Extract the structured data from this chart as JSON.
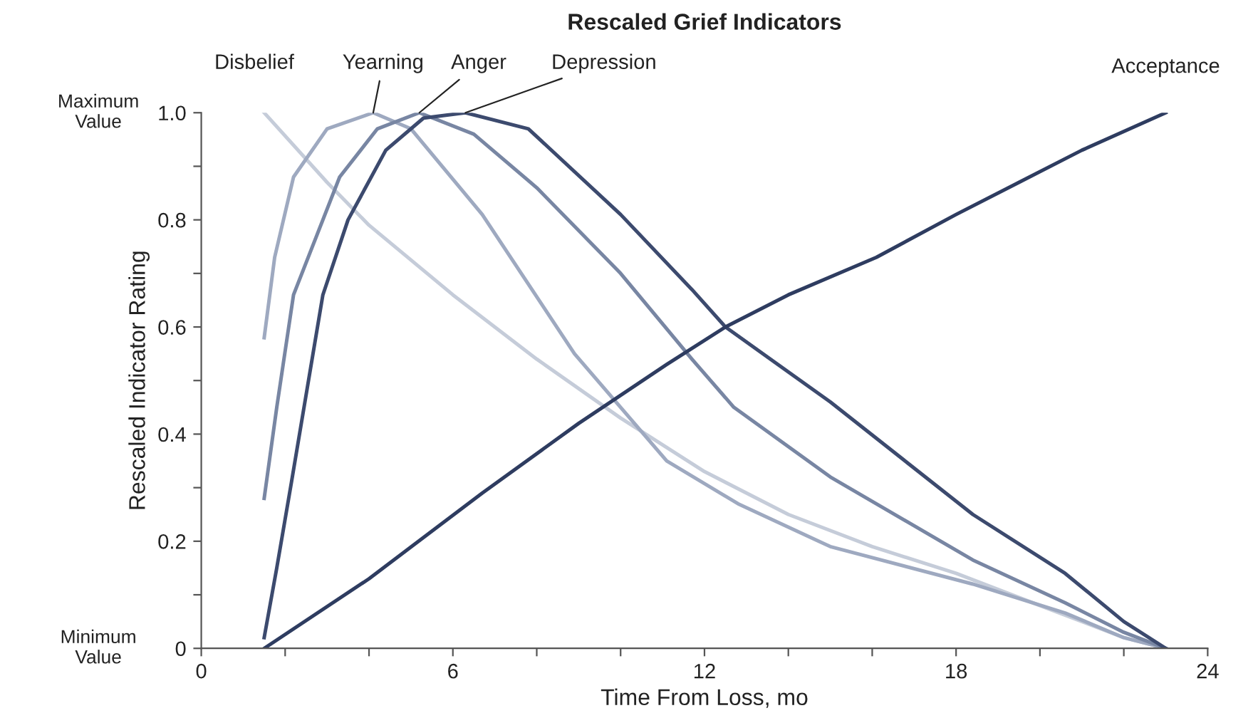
{
  "chart_data": {
    "type": "line",
    "title": "Rescaled Grief Indicators",
    "xlabel": "Time From Loss, mo",
    "ylabel": "Rescaled Indicator Rating",
    "series": [
      {
        "name": "Disbelief",
        "color": "#c5ccd9",
        "x": [
          1.5,
          3,
          4,
          6,
          8,
          10,
          12,
          14,
          16,
          18,
          20,
          22,
          23
        ],
        "values": [
          1.0,
          0.87,
          0.79,
          0.66,
          0.54,
          0.43,
          0.33,
          0.25,
          0.19,
          0.14,
          0.08,
          0.02,
          0
        ]
      },
      {
        "name": "Yearning",
        "color": "#9ea9c0",
        "x": [
          1.5,
          1.75,
          2.2,
          3,
          4.1,
          5,
          6.7,
          8.9,
          11.1,
          12.8,
          15,
          18.4,
          20.6,
          22,
          23
        ],
        "values": [
          0.58,
          0.73,
          0.88,
          0.97,
          1.0,
          0.97,
          0.81,
          0.55,
          0.35,
          0.27,
          0.19,
          0.12,
          0.066,
          0.02,
          0
        ]
      },
      {
        "name": "Anger",
        "color": "#7886a3",
        "x": [
          1.5,
          1.8,
          2.2,
          3.3,
          4.2,
          5.2,
          6.5,
          8,
          10,
          11.7,
          12.7,
          15,
          18.4,
          20.6,
          22,
          23
        ],
        "values": [
          0.28,
          0.45,
          0.66,
          0.88,
          0.97,
          1.0,
          0.96,
          0.86,
          0.7,
          0.54,
          0.45,
          0.32,
          0.165,
          0.085,
          0.03,
          0
        ]
      },
      {
        "name": "Depression",
        "color": "#3c4a6e",
        "x": [
          1.5,
          1.8,
          2.15,
          2.9,
          3.5,
          4.4,
          5.3,
          6.3,
          7.8,
          10,
          11.7,
          12.5,
          15,
          18.4,
          20.6,
          22,
          23
        ],
        "values": [
          0.02,
          0.15,
          0.31,
          0.66,
          0.8,
          0.93,
          0.99,
          1.0,
          0.97,
          0.81,
          0.67,
          0.6,
          0.46,
          0.25,
          0.14,
          0.05,
          0
        ]
      },
      {
        "name": "Acceptance",
        "color": "#2e3c60",
        "x": [
          1.5,
          4,
          6.7,
          9,
          11.1,
          12.5,
          14,
          16.1,
          18,
          19.5,
          21,
          23
        ],
        "values": [
          0,
          0.13,
          0.29,
          0.42,
          0.53,
          0.6,
          0.66,
          0.73,
          0.81,
          0.87,
          0.93,
          1.0
        ]
      }
    ],
    "xlim": [
      0,
      24
    ],
    "xticks": [
      0,
      {
        "value": 2,
        "label": null
      },
      {
        "value": 4,
        "label": null
      },
      6,
      {
        "value": 8,
        "label": null
      },
      {
        "value": 10,
        "label": null
      },
      12,
      {
        "value": 14,
        "label": null
      },
      {
        "value": 16,
        "label": null
      },
      18,
      {
        "value": 20,
        "label": null
      },
      {
        "value": 22,
        "label": null
      },
      24
    ],
    "ylim": [
      0,
      1.0
    ],
    "yticks": [
      0,
      {
        "value": 0.1,
        "label": null
      },
      0.2,
      {
        "value": 0.3,
        "label": null
      },
      0.4,
      {
        "value": 0.5,
        "label": null
      },
      0.6,
      {
        "value": 0.7,
        "label": null
      },
      0.8,
      {
        "value": 0.9,
        "label": null
      },
      {
        "value": 1.0,
        "label": "1.0"
      }
    ],
    "annotations": [
      "Maximum Value",
      "Minimum Value"
    ],
    "grid": false,
    "legend": false,
    "marker": "none",
    "line_style": "solid"
  }
}
